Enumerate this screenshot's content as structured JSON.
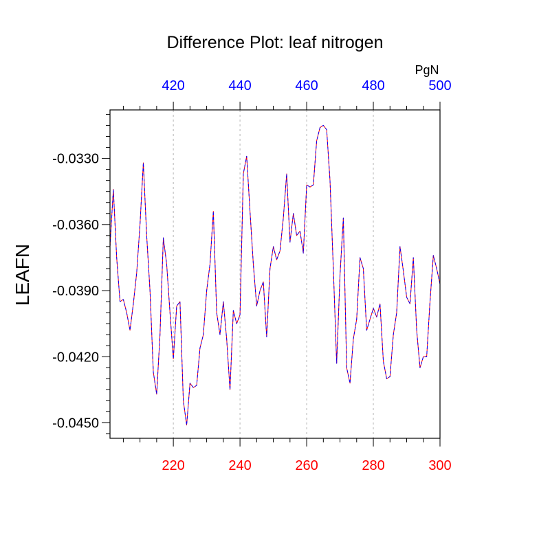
{
  "chart_data": {
    "type": "line",
    "title": "Difference Plot: leaf nitrogen",
    "ylabel": "LEAFN",
    "top_units": "PgN",
    "grid": "vertical dotted",
    "x_bottom": {
      "lim": [
        201,
        300
      ],
      "ticks": [
        220,
        240,
        260,
        280,
        300
      ],
      "tick_labels": [
        "220",
        "240",
        "260",
        "280",
        "300"
      ],
      "color": "#ff0000"
    },
    "x_top": {
      "lim": [
        401,
        500
      ],
      "ticks": [
        420,
        440,
        460,
        480,
        500
      ],
      "tick_labels": [
        "420",
        "440",
        "460",
        "480",
        "500"
      ],
      "color": "#0000ff"
    },
    "y": {
      "lim": [
        -0.0457,
        -0.0308
      ],
      "ticks": [
        -0.033,
        -0.036,
        -0.039,
        -0.042,
        -0.045
      ],
      "tick_labels": [
        "-0.0330",
        "-0.0360",
        "-0.0390",
        "-0.0420",
        "-0.0450"
      ]
    },
    "series": [
      {
        "style": "solid",
        "color": "#ff0000",
        "x": [
          201,
          202,
          203,
          204,
          205,
          206,
          207,
          208,
          209,
          210,
          211,
          212,
          213,
          214,
          215,
          216,
          217,
          218,
          219,
          220,
          221,
          222,
          223,
          224,
          225,
          226,
          227,
          228,
          229,
          230,
          231,
          232,
          233,
          234,
          235,
          236,
          237,
          238,
          239,
          240,
          241,
          242,
          243,
          244,
          245,
          246,
          247,
          248,
          249,
          250,
          251,
          252,
          253,
          254,
          255,
          256,
          257,
          258,
          259,
          260,
          261,
          262,
          263,
          264,
          265,
          266,
          267,
          268,
          269,
          270,
          271,
          272,
          273,
          274,
          275,
          276,
          277,
          278,
          279,
          280,
          281,
          282,
          283,
          284,
          285,
          286,
          287,
          288,
          289,
          290,
          291,
          292,
          293,
          294,
          295,
          296,
          297,
          298,
          299,
          300
        ],
        "values": [
          -0.037,
          -0.0344,
          -0.0375,
          -0.0395,
          -0.0394,
          -0.04,
          -0.0408,
          -0.0396,
          -0.0382,
          -0.036,
          -0.0332,
          -0.0365,
          -0.039,
          -0.0427,
          -0.0437,
          -0.041,
          -0.0366,
          -0.0378,
          -0.04,
          -0.0421,
          -0.0397,
          -0.0395,
          -0.044,
          -0.0451,
          -0.0432,
          -0.0434,
          -0.0433,
          -0.0416,
          -0.041,
          -0.039,
          -0.0378,
          -0.0354,
          -0.04,
          -0.041,
          -0.0395,
          -0.0412,
          -0.0435,
          -0.0399,
          -0.0405,
          -0.0401,
          -0.0337,
          -0.0329,
          -0.0354,
          -0.0378,
          -0.0397,
          -0.039,
          -0.0386,
          -0.0411,
          -0.038,
          -0.037,
          -0.0376,
          -0.0372,
          -0.0357,
          -0.0337,
          -0.0368,
          -0.0355,
          -0.0365,
          -0.0363,
          -0.0373,
          -0.0342,
          -0.0343,
          -0.0342,
          -0.0322,
          -0.0316,
          -0.0315,
          -0.0317,
          -0.034,
          -0.038,
          -0.0423,
          -0.0383,
          -0.0357,
          -0.0425,
          -0.0432,
          -0.0412,
          -0.0403,
          -0.0375,
          -0.038,
          -0.0408,
          -0.0403,
          -0.0398,
          -0.0402,
          -0.0396,
          -0.0422,
          -0.043,
          -0.0429,
          -0.041,
          -0.04,
          -0.037,
          -0.0381,
          -0.0393,
          -0.0396,
          -0.0375,
          -0.0408,
          -0.0425,
          -0.042,
          -0.042,
          -0.0395,
          -0.0374,
          -0.038,
          -0.0387
        ]
      },
      {
        "style": "dashed",
        "color": "#0000ff",
        "x": [
          201,
          202,
          203,
          204,
          205,
          206,
          207,
          208,
          209,
          210,
          211,
          212,
          213,
          214,
          215,
          216,
          217,
          218,
          219,
          220,
          221,
          222,
          223,
          224,
          225,
          226,
          227,
          228,
          229,
          230,
          231,
          232,
          233,
          234,
          235,
          236,
          237,
          238,
          239,
          240,
          241,
          242,
          243,
          244,
          245,
          246,
          247,
          248,
          249,
          250,
          251,
          252,
          253,
          254,
          255,
          256,
          257,
          258,
          259,
          260,
          261,
          262,
          263,
          264,
          265,
          266,
          267,
          268,
          269,
          270,
          271,
          272,
          273,
          274,
          275,
          276,
          277,
          278,
          279,
          280,
          281,
          282,
          283,
          284,
          285,
          286,
          287,
          288,
          289,
          290,
          291,
          292,
          293,
          294,
          295,
          296,
          297,
          298,
          299,
          300
        ],
        "values": [
          -0.037,
          -0.0344,
          -0.0375,
          -0.0395,
          -0.0394,
          -0.04,
          -0.0408,
          -0.0396,
          -0.0382,
          -0.036,
          -0.0332,
          -0.0365,
          -0.039,
          -0.0427,
          -0.0437,
          -0.041,
          -0.0366,
          -0.0378,
          -0.04,
          -0.0421,
          -0.0397,
          -0.0395,
          -0.044,
          -0.0451,
          -0.0432,
          -0.0434,
          -0.0433,
          -0.0416,
          -0.041,
          -0.039,
          -0.0378,
          -0.0354,
          -0.04,
          -0.041,
          -0.0395,
          -0.0412,
          -0.0435,
          -0.0399,
          -0.0405,
          -0.0401,
          -0.0337,
          -0.0329,
          -0.0354,
          -0.0378,
          -0.0397,
          -0.039,
          -0.0386,
          -0.0411,
          -0.038,
          -0.037,
          -0.0376,
          -0.0372,
          -0.0357,
          -0.0337,
          -0.0368,
          -0.0355,
          -0.0365,
          -0.0363,
          -0.0373,
          -0.0342,
          -0.0343,
          -0.0342,
          -0.0322,
          -0.0316,
          -0.0315,
          -0.0317,
          -0.034,
          -0.038,
          -0.0423,
          -0.0383,
          -0.0357,
          -0.0425,
          -0.0432,
          -0.0412,
          -0.0403,
          -0.0375,
          -0.038,
          -0.0408,
          -0.0403,
          -0.0398,
          -0.0402,
          -0.0396,
          -0.0422,
          -0.043,
          -0.0429,
          -0.041,
          -0.04,
          -0.037,
          -0.0381,
          -0.0393,
          -0.0396,
          -0.0375,
          -0.0408,
          -0.0425,
          -0.042,
          -0.042,
          -0.0395,
          -0.0374,
          -0.038,
          -0.0387
        ]
      }
    ]
  }
}
